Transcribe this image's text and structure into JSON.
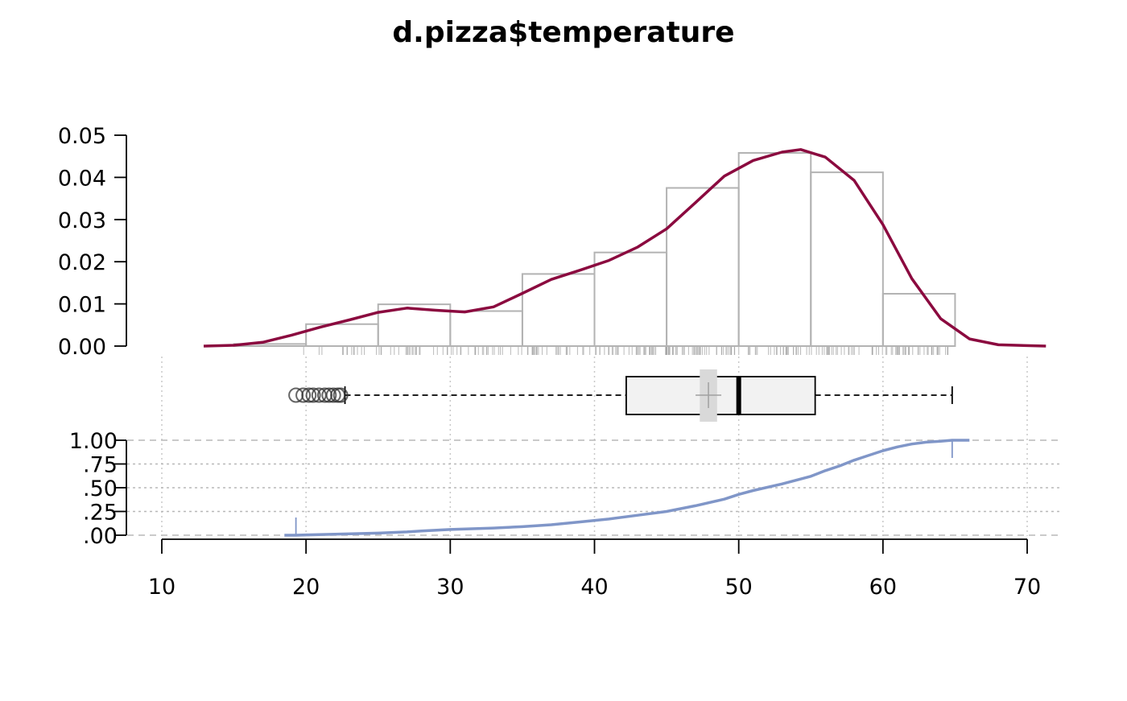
{
  "chart_data": {
    "type": "histogram-density-boxplot-ecdf",
    "title": "d.pizza$temperature",
    "x_axis": {
      "range": [
        10,
        70
      ],
      "ticks": [
        10,
        20,
        30,
        40,
        50,
        60,
        70
      ],
      "labels": [
        "10",
        "20",
        "30",
        "40",
        "50",
        "60",
        "70"
      ],
      "vertical_gridlines": [
        10,
        20,
        30,
        40,
        50,
        60,
        70
      ]
    },
    "histogram": {
      "bins": [
        {
          "from": 15,
          "to": 20,
          "density": 0.0005
        },
        {
          "from": 20,
          "to": 25,
          "density": 0.0052
        },
        {
          "from": 25,
          "to": 30,
          "density": 0.0099
        },
        {
          "from": 30,
          "to": 35,
          "density": 0.0083
        },
        {
          "from": 35,
          "to": 40,
          "density": 0.0171
        },
        {
          "from": 40,
          "to": 45,
          "density": 0.0222
        },
        {
          "from": 45,
          "to": 50,
          "density": 0.0375
        },
        {
          "from": 50,
          "to": 55,
          "density": 0.0458
        },
        {
          "from": 55,
          "to": 60,
          "density": 0.0412
        },
        {
          "from": 60,
          "to": 65,
          "density": 0.0124
        }
      ],
      "y_range": [
        0,
        0.05
      ],
      "y_ticks": [
        0,
        0.01,
        0.02,
        0.03,
        0.04,
        0.05
      ],
      "y_labels": [
        "0.00",
        "0.01",
        "0.02",
        "0.03",
        "0.04",
        "0.05"
      ],
      "bar_color": "#b3b3b3"
    },
    "density": {
      "color": "#8b0a3f",
      "points": [
        [
          12.9,
          0.0
        ],
        [
          15,
          0.0002
        ],
        [
          17,
          0.0009
        ],
        [
          19,
          0.0026
        ],
        [
          21,
          0.0045
        ],
        [
          23,
          0.0062
        ],
        [
          25,
          0.008
        ],
        [
          27,
          0.009
        ],
        [
          29,
          0.0085
        ],
        [
          31,
          0.0081
        ],
        [
          33,
          0.0093
        ],
        [
          35,
          0.0125
        ],
        [
          37,
          0.0158
        ],
        [
          39,
          0.018
        ],
        [
          41,
          0.0203
        ],
        [
          43,
          0.0235
        ],
        [
          45,
          0.0278
        ],
        [
          47,
          0.034
        ],
        [
          49,
          0.0403
        ],
        [
          51,
          0.044
        ],
        [
          53,
          0.046
        ],
        [
          54.3,
          0.0466
        ],
        [
          56,
          0.0448
        ],
        [
          58,
          0.0393
        ],
        [
          60,
          0.0288
        ],
        [
          62,
          0.016
        ],
        [
          64,
          0.0065
        ],
        [
          66,
          0.0017
        ],
        [
          68,
          0.0003
        ],
        [
          71.3,
          0.0
        ]
      ]
    },
    "rug": {
      "from": 19.5,
      "to": 64.8,
      "color": "#9e9e9e"
    },
    "boxplot": {
      "whisker_low": 22.7,
      "q1": 42.2,
      "median": 50.0,
      "q3": 55.3,
      "whisker_high": 64.8,
      "mean": 47.9,
      "mean_ci": [
        47.3,
        48.5
      ],
      "outliers": [
        19.3,
        19.8,
        20.2,
        20.5,
        20.9,
        21.3,
        21.6,
        21.9,
        22.2,
        22.4
      ],
      "box_fill": "#f2f2f2",
      "ci_fill": "#d9d9d9"
    },
    "ecdf": {
      "color": "#8096c8",
      "y_range": [
        0,
        1
      ],
      "y_ticks": [
        0,
        0.25,
        0.5,
        0.75,
        1.0
      ],
      "y_labels": [
        ".00",
        ".25",
        ".50",
        ".75",
        "1.00"
      ],
      "min": 19.3,
      "max": 64.8,
      "points": [
        [
          18.5,
          0.0
        ],
        [
          19.3,
          0.0
        ],
        [
          20,
          0.003
        ],
        [
          22,
          0.01
        ],
        [
          25,
          0.022
        ],
        [
          27,
          0.035
        ],
        [
          28,
          0.045
        ],
        [
          30,
          0.06
        ],
        [
          33,
          0.075
        ],
        [
          35,
          0.09
        ],
        [
          37,
          0.11
        ],
        [
          39,
          0.14
        ],
        [
          41,
          0.17
        ],
        [
          43,
          0.21
        ],
        [
          45,
          0.25
        ],
        [
          47,
          0.31
        ],
        [
          49,
          0.38
        ],
        [
          50,
          0.43
        ],
        [
          51,
          0.47
        ],
        [
          53,
          0.54
        ],
        [
          55,
          0.62
        ],
        [
          56,
          0.68
        ],
        [
          57,
          0.73
        ],
        [
          58,
          0.79
        ],
        [
          59,
          0.84
        ],
        [
          60,
          0.89
        ],
        [
          61,
          0.93
        ],
        [
          62,
          0.96
        ],
        [
          63,
          0.98
        ],
        [
          64,
          0.99
        ],
        [
          64.8,
          1.0
        ],
        [
          66,
          1.0
        ]
      ]
    }
  }
}
